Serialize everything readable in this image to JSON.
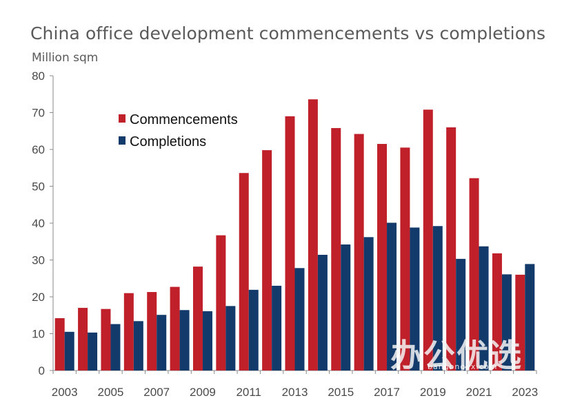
{
  "chart_data": {
    "type": "bar",
    "title": "China office development commencements vs completions",
    "ylabel": "Million sqm",
    "xlabel": "",
    "ylim": [
      0,
      80
    ],
    "yticks": [
      0,
      10,
      20,
      30,
      40,
      50,
      60,
      70,
      80
    ],
    "categories": [
      "2003",
      "2004",
      "2005",
      "2006",
      "2007",
      "2008",
      "2009",
      "2010",
      "2011",
      "2012",
      "2013",
      "2014",
      "2015",
      "2016",
      "2017",
      "2018",
      "2019",
      "2020",
      "2021",
      "2022",
      "2023"
    ],
    "xtick_labels": [
      "2003",
      "2005",
      "2007",
      "2009",
      "2011",
      "2013",
      "2015",
      "2017",
      "2019",
      "2021",
      "2023"
    ],
    "legend_position": "upper-left",
    "series": [
      {
        "name": "Commencements",
        "color": "#c0202a",
        "values": [
          14.2,
          17.0,
          16.7,
          21.0,
          21.3,
          22.7,
          28.2,
          36.7,
          53.6,
          59.8,
          69.0,
          73.6,
          65.8,
          64.2,
          61.5,
          60.5,
          70.8,
          66.0,
          52.2,
          31.8,
          26.0
        ]
      },
      {
        "name": "Completions",
        "color": "#123a6b",
        "values": [
          10.5,
          10.3,
          12.6,
          13.4,
          15.1,
          16.4,
          16.1,
          17.5,
          21.9,
          23.0,
          27.8,
          31.4,
          34.2,
          36.2,
          40.1,
          38.8,
          39.2,
          30.3,
          33.7,
          26.1,
          28.9
        ]
      }
    ]
  },
  "watermark": {
    "text": "办公优选",
    "sub": "bangongyx.com"
  }
}
